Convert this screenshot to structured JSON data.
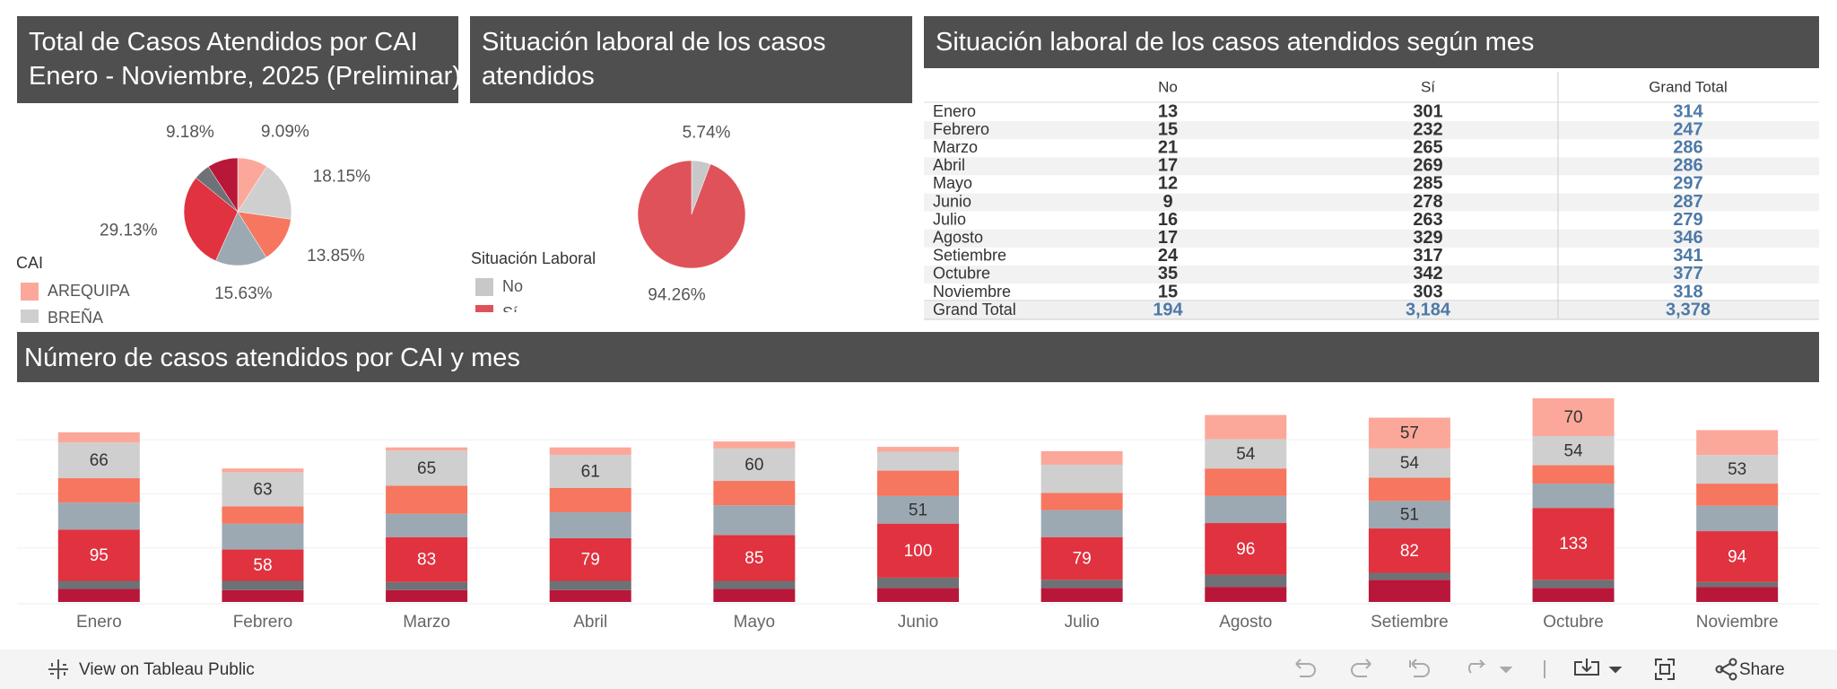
{
  "chart_data": [
    {
      "type": "pie",
      "title": "Total de Casos Atendidos por CAI",
      "subtitle": "Enero - Noviembre, 2025 (Preliminar)",
      "legend_title": "CAI",
      "categories": [
        "AREQUIPA",
        "BREÑA",
        null,
        null,
        null,
        null,
        null
      ],
      "values": [
        9.09,
        18.15,
        13.85,
        15.63,
        29.13,
        4.97,
        9.18
      ],
      "value_labels": [
        "9.09%",
        "18.15%",
        "13.85%",
        "15.63%",
        "29.13%",
        null,
        "9.18%"
      ],
      "colors": [
        "#fba89a",
        "#cfcfcf",
        "#f6765f",
        "#9ca9b3",
        "#e0323f",
        "#6e7175",
        "#b8173a"
      ]
    },
    {
      "type": "pie",
      "title": "Situación laboral de los casos atendidos",
      "legend_title": "Situación Laboral",
      "categories": [
        "No",
        "Sí"
      ],
      "values": [
        5.74,
        94.26
      ],
      "value_labels": [
        "5.74%",
        "94.26%"
      ],
      "colors": [
        "#c8c8c8",
        "#e0525a"
      ]
    },
    {
      "type": "stacked_bar",
      "title": "Número de casos atendidos por CAI y mes",
      "categories": [
        "Enero",
        "Febrero",
        "Marzo",
        "Abril",
        "Mayo",
        "Junio",
        "Julio",
        "Agosto",
        "Setiembre",
        "Octubre",
        "Noviembre"
      ],
      "ylim": [
        0,
        400
      ],
      "yticks": [
        100,
        200,
        300
      ],
      "grid": true,
      "series": [
        {
          "name": null,
          "color": "#b8173a",
          "values": [
            24,
            22,
            22,
            22,
            24,
            26,
            26,
            28,
            41,
            26,
            28
          ],
          "value_labels": [
            null,
            null,
            null,
            null,
            null,
            null,
            null,
            null,
            null,
            null,
            null
          ]
        },
        {
          "name": null,
          "color": "#6e7175",
          "values": [
            15,
            17,
            15,
            17,
            15,
            19,
            15,
            22,
            13,
            15,
            9
          ],
          "value_labels": [
            null,
            null,
            null,
            null,
            null,
            null,
            null,
            null,
            null,
            null,
            null
          ]
        },
        {
          "name": null,
          "color": "#e0323f",
          "values": [
            95,
            58,
            83,
            79,
            85,
            100,
            79,
            96,
            82,
            133,
            94
          ],
          "value_labels": [
            "95",
            "58",
            "83",
            "79",
            "85",
            "100",
            "79",
            "96",
            "82",
            "133",
            "94"
          ]
        },
        {
          "name": null,
          "color": "#9ca9b3",
          "values": [
            50,
            48,
            43,
            48,
            55,
            51,
            50,
            50,
            51,
            45,
            47
          ],
          "value_labels": [
            null,
            null,
            null,
            null,
            null,
            "51",
            null,
            null,
            "51",
            null,
            null
          ]
        },
        {
          "name": null,
          "color": "#f6765f",
          "values": [
            45,
            32,
            52,
            45,
            45,
            47,
            32,
            51,
            43,
            34,
            41
          ],
          "value_labels": [
            null,
            null,
            null,
            null,
            null,
            null,
            null,
            null,
            null,
            null,
            null
          ]
        },
        {
          "name": "BREÑA",
          "color": "#cfcfcf",
          "values": [
            66,
            63,
            65,
            61,
            60,
            35,
            52,
            54,
            54,
            54,
            53
          ],
          "value_labels": [
            "66",
            "63",
            "65",
            "61",
            "60",
            null,
            null,
            "54",
            "54",
            "54",
            "53"
          ]
        },
        {
          "name": "AREQUIPA",
          "color": "#fba89a",
          "values": [
            19,
            7,
            6,
            14,
            13,
            9,
            25,
            45,
            57,
            70,
            46
          ],
          "value_labels": [
            null,
            null,
            null,
            null,
            null,
            null,
            null,
            null,
            "57",
            "70",
            null
          ]
        }
      ]
    }
  ],
  "table": {
    "title": "Situación laboral de los casos atendidos según mes",
    "columns": [
      "No",
      "Sí",
      "Grand Total"
    ],
    "rows": [
      [
        "Enero",
        "13",
        "301",
        "314"
      ],
      [
        "Febrero",
        "15",
        "232",
        "247"
      ],
      [
        "Marzo",
        "21",
        "265",
        "286"
      ],
      [
        "Abril",
        "17",
        "269",
        "286"
      ],
      [
        "Mayo",
        "12",
        "285",
        "297"
      ],
      [
        "Junio",
        "9",
        "278",
        "287"
      ],
      [
        "Julio",
        "16",
        "263",
        "279"
      ],
      [
        "Agosto",
        "17",
        "329",
        "346"
      ],
      [
        "Setiembre",
        "24",
        "317",
        "341"
      ],
      [
        "Octubre",
        "35",
        "342",
        "377"
      ],
      [
        "Noviembre",
        "15",
        "303",
        "318"
      ]
    ],
    "total": [
      "Grand Total",
      "194",
      "3,184",
      "3,378"
    ]
  },
  "toolbar": {
    "link": "View on Tableau Public",
    "share": "Share"
  }
}
